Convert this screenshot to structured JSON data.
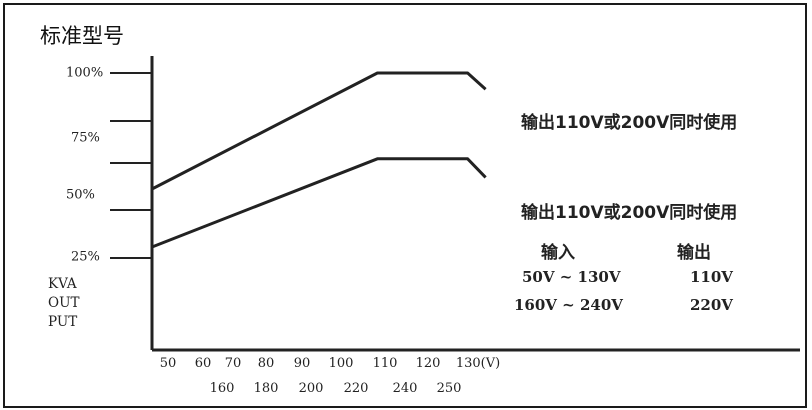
{
  "title": "标准型号",
  "chart_data": {
    "type": "line",
    "ylabel_lines": [
      "KVA",
      "OUT",
      "PUT"
    ],
    "y_ticks": [
      "100%",
      "75%",
      "50%",
      "25%"
    ],
    "x_ticks_row1": [
      "50",
      "60",
      "70",
      "80",
      "90",
      "100",
      "110",
      "120",
      "130(V)"
    ],
    "x_ticks_row2": [
      "160",
      "180",
      "200",
      "220",
      "240",
      "250"
    ],
    "xlim": [
      50,
      132
    ],
    "ylim": [
      0,
      110
    ],
    "series": [
      {
        "label": "输出110V或200V同时使用",
        "points": [
          [
            50,
            50
          ],
          [
            100,
            100
          ],
          [
            120,
            100
          ],
          [
            124,
            93
          ]
        ]
      },
      {
        "label": "输出110V或200V同时使用",
        "points": [
          [
            50,
            25
          ],
          [
            100,
            63
          ],
          [
            120,
            63
          ],
          [
            124,
            55
          ]
        ]
      }
    ]
  },
  "table": {
    "header": [
      "输入",
      "输出"
    ],
    "rows": [
      [
        "50V ~ 130V",
        "110V"
      ],
      [
        "160V ~ 240V",
        "220V"
      ]
    ]
  }
}
